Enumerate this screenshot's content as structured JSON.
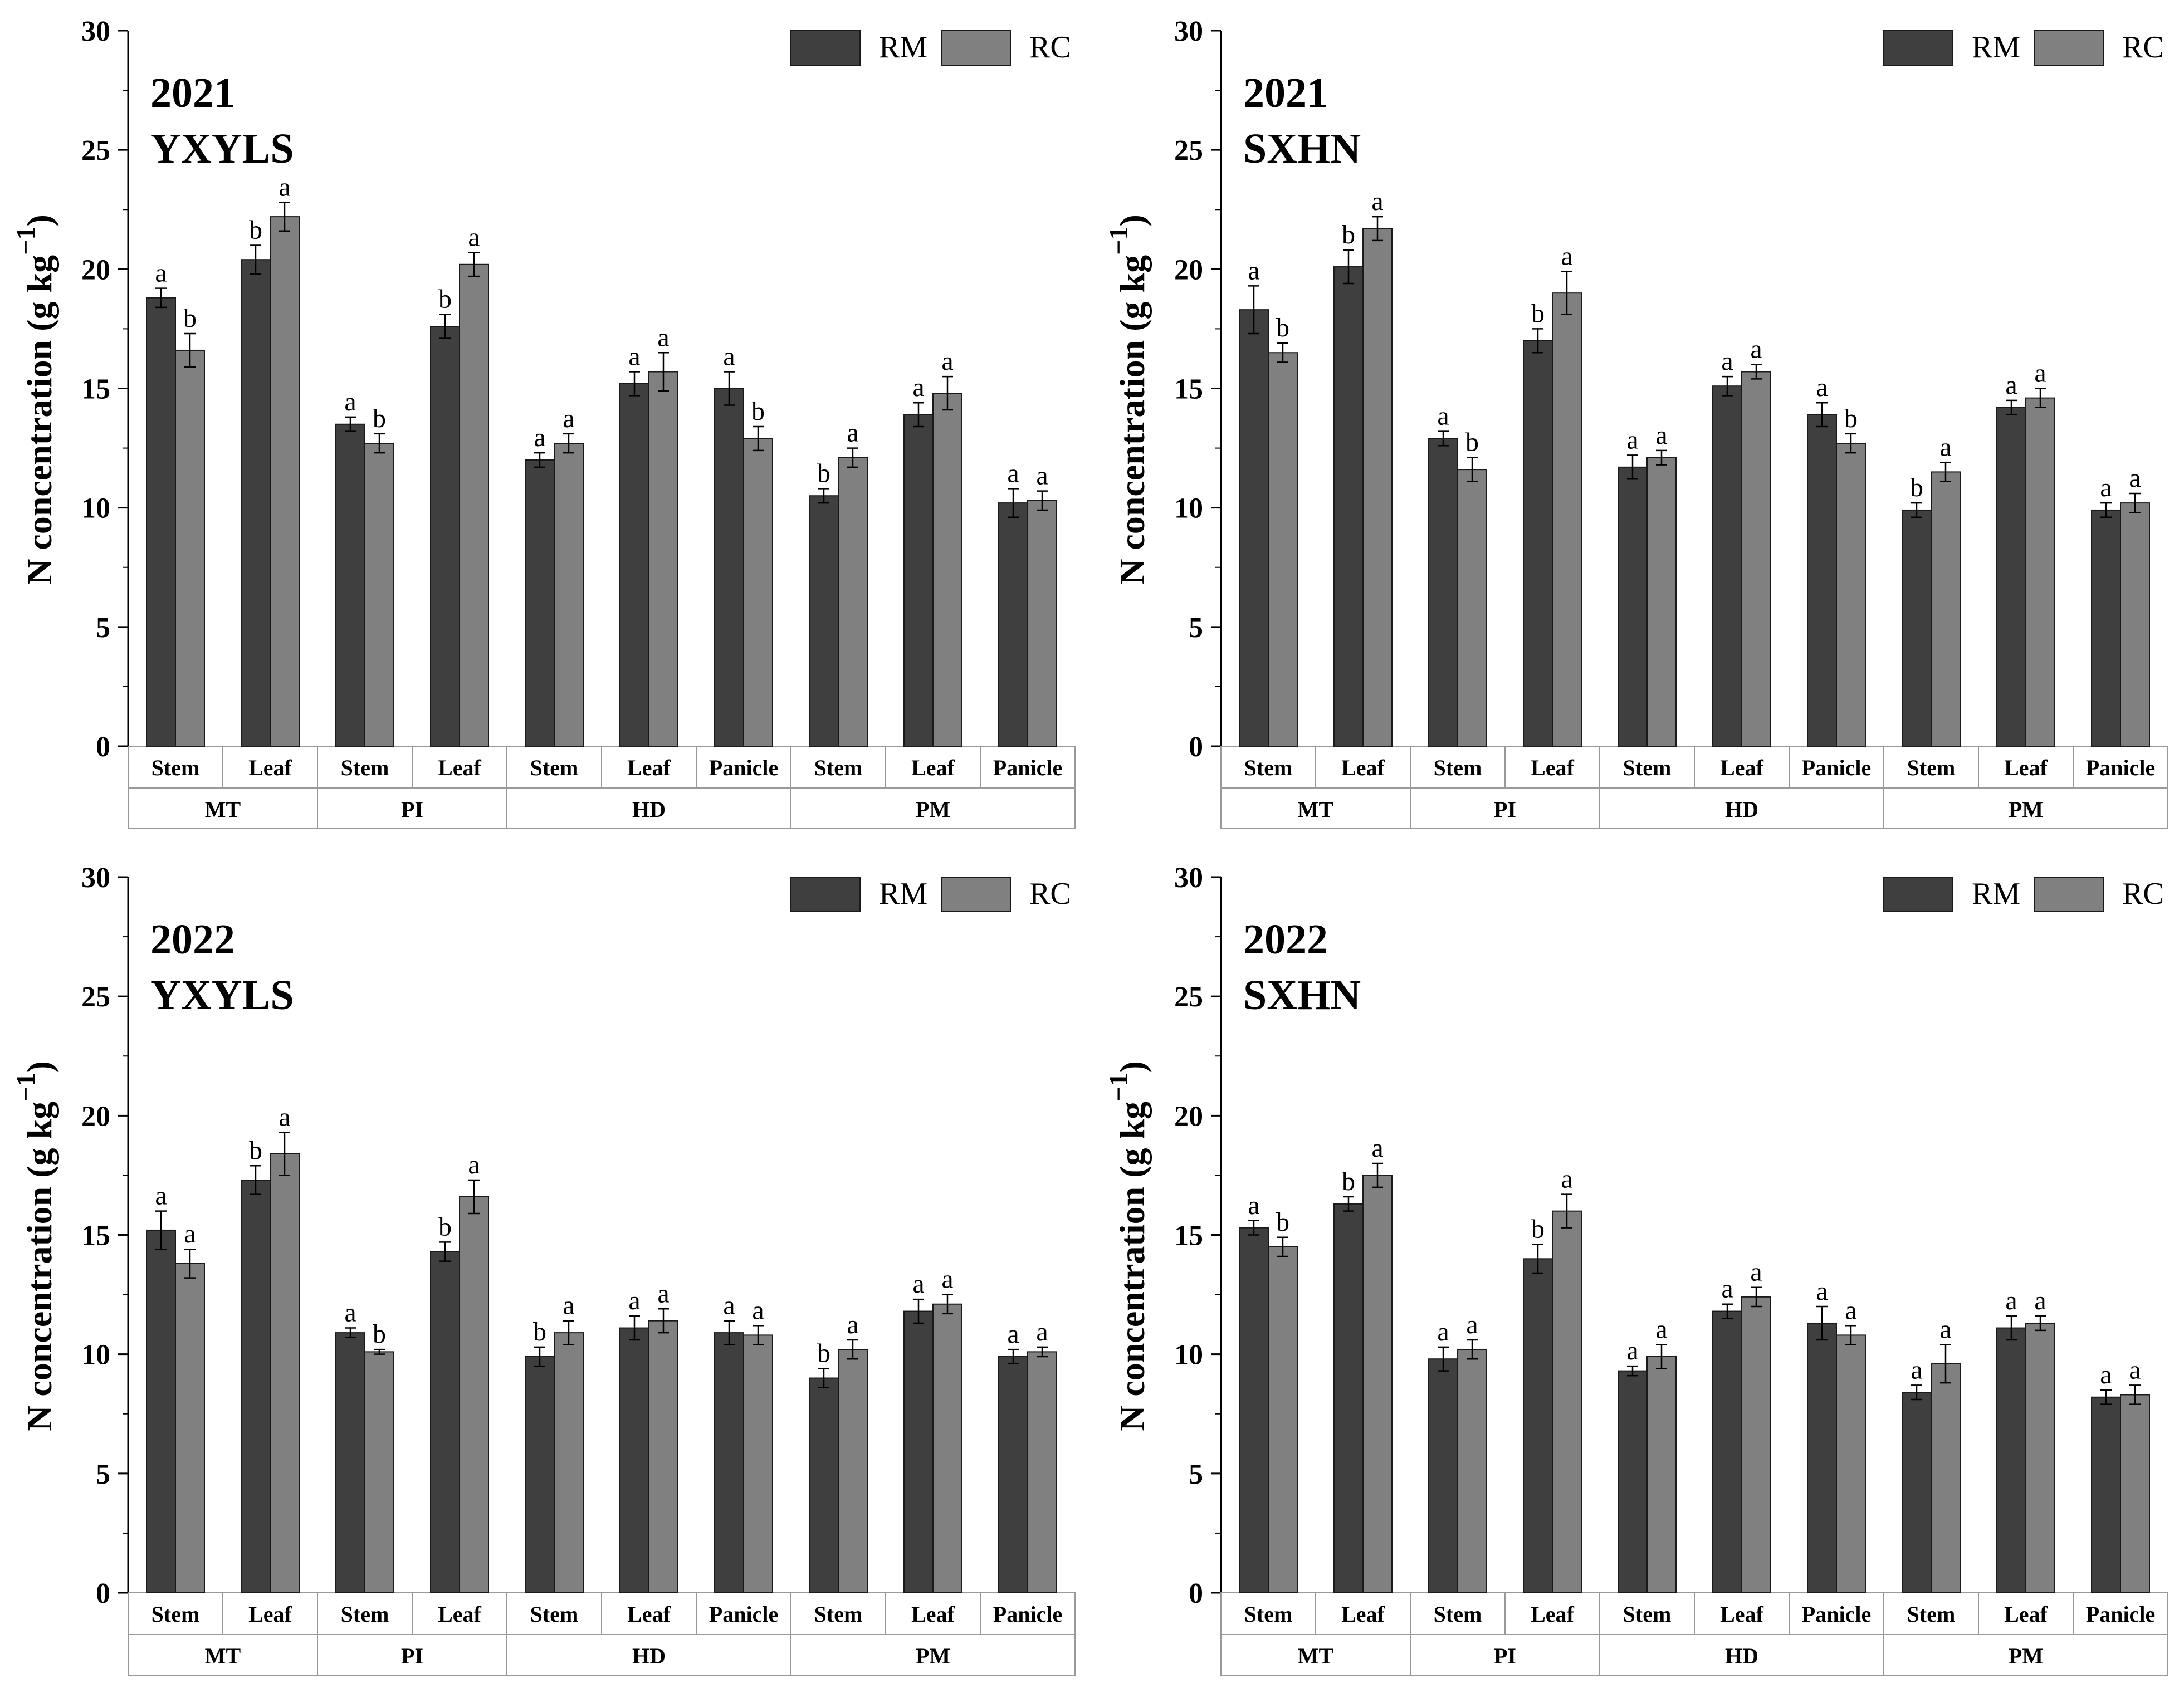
{
  "figure": {
    "description_free": true
  },
  "legend": {
    "items": [
      {
        "label": "RM",
        "color": "#3f3f3f"
      },
      {
        "label": "RC",
        "color": "#808080"
      }
    ]
  },
  "ylabel": "N concentration (g kg",
  "ylabel_sup": "−1",
  "ylabel_close": ")",
  "categories": [
    "Stem",
    "Leaf",
    "Stem",
    "Leaf",
    "Stem",
    "Leaf",
    "Panicle",
    "Stem",
    "Leaf",
    "Panicle"
  ],
  "groups": [
    {
      "label": "MT",
      "span": [
        0,
        1
      ]
    },
    {
      "label": "PI",
      "span": [
        2,
        3
      ]
    },
    {
      "label": "HD",
      "span": [
        4,
        6
      ]
    },
    {
      "label": "PM",
      "span": [
        7,
        9
      ]
    }
  ],
  "chart_data": [
    {
      "type": "bar",
      "title_line1": "2021",
      "title_line2": "YXYLS",
      "ylim": [
        0,
        30
      ],
      "yticks": [
        0,
        5,
        10,
        15,
        20,
        25,
        30
      ],
      "series": [
        {
          "name": "RM",
          "values": [
            18.8,
            20.4,
            13.5,
            17.6,
            12.0,
            15.2,
            15.0,
            10.5,
            13.9,
            10.2
          ],
          "errors": [
            0.4,
            0.6,
            0.3,
            0.5,
            0.3,
            0.5,
            0.7,
            0.3,
            0.5,
            0.6
          ],
          "sig": [
            "a",
            "b",
            "a",
            "b",
            "a",
            "a",
            "a",
            "b",
            "a",
            "a"
          ]
        },
        {
          "name": "RC",
          "values": [
            16.6,
            22.2,
            12.7,
            20.2,
            12.7,
            15.7,
            12.9,
            12.1,
            14.8,
            10.3
          ],
          "errors": [
            0.7,
            0.6,
            0.4,
            0.5,
            0.4,
            0.8,
            0.5,
            0.4,
            0.7,
            0.4
          ],
          "sig": [
            "b",
            "a",
            "b",
            "a",
            "a",
            "a",
            "b",
            "a",
            "a",
            "a"
          ]
        }
      ]
    },
    {
      "type": "bar",
      "title_line1": "2021",
      "title_line2": "SXHN",
      "ylim": [
        0,
        30
      ],
      "yticks": [
        0,
        5,
        10,
        15,
        20,
        25,
        30
      ],
      "series": [
        {
          "name": "RM",
          "values": [
            18.3,
            20.1,
            12.9,
            17.0,
            11.7,
            15.1,
            13.9,
            9.9,
            14.2,
            9.9
          ],
          "errors": [
            1.0,
            0.7,
            0.3,
            0.5,
            0.5,
            0.4,
            0.5,
            0.3,
            0.3,
            0.3
          ],
          "sig": [
            "a",
            "b",
            "a",
            "b",
            "a",
            "a",
            "a",
            "b",
            "a",
            "a"
          ]
        },
        {
          "name": "RC",
          "values": [
            16.5,
            21.7,
            11.6,
            19.0,
            12.1,
            15.7,
            12.7,
            11.5,
            14.6,
            10.2
          ],
          "errors": [
            0.4,
            0.5,
            0.5,
            0.9,
            0.3,
            0.3,
            0.4,
            0.4,
            0.4,
            0.4
          ],
          "sig": [
            "b",
            "a",
            "b",
            "a",
            "a",
            "a",
            "b",
            "a",
            "a",
            "a"
          ]
        }
      ]
    },
    {
      "type": "bar",
      "title_line1": "2022",
      "title_line2": "YXYLS",
      "ylim": [
        0,
        30
      ],
      "yticks": [
        0,
        5,
        10,
        15,
        20,
        25,
        30
      ],
      "series": [
        {
          "name": "RM",
          "values": [
            15.2,
            17.3,
            10.9,
            14.3,
            9.9,
            11.1,
            10.9,
            9.0,
            11.8,
            9.9
          ],
          "errors": [
            0.8,
            0.6,
            0.2,
            0.4,
            0.4,
            0.5,
            0.5,
            0.4,
            0.5,
            0.3
          ],
          "sig": [
            "a",
            "b",
            "a",
            "b",
            "b",
            "a",
            "a",
            "b",
            "a",
            "a"
          ]
        },
        {
          "name": "RC",
          "values": [
            13.8,
            18.4,
            10.1,
            16.6,
            10.9,
            11.4,
            10.8,
            10.2,
            12.1,
            10.1
          ],
          "errors": [
            0.6,
            0.9,
            0.1,
            0.7,
            0.5,
            0.5,
            0.4,
            0.4,
            0.4,
            0.2
          ],
          "sig": [
            "a",
            "a",
            "b",
            "a",
            "a",
            "a",
            "a",
            "a",
            "a",
            "a"
          ]
        }
      ]
    },
    {
      "type": "bar",
      "title_line1": "2022",
      "title_line2": "SXHN",
      "ylim": [
        0,
        30
      ],
      "yticks": [
        0,
        5,
        10,
        15,
        20,
        25,
        30
      ],
      "series": [
        {
          "name": "RM",
          "values": [
            15.3,
            16.3,
            9.8,
            14.0,
            9.3,
            11.8,
            11.3,
            8.4,
            11.1,
            8.2
          ],
          "errors": [
            0.3,
            0.3,
            0.5,
            0.6,
            0.2,
            0.3,
            0.7,
            0.3,
            0.5,
            0.3
          ],
          "sig": [
            "a",
            "b",
            "a",
            "b",
            "a",
            "a",
            "a",
            "a",
            "a",
            "a"
          ]
        },
        {
          "name": "RC",
          "values": [
            14.5,
            17.5,
            10.2,
            16.0,
            9.9,
            12.4,
            10.8,
            9.6,
            11.3,
            8.3
          ],
          "errors": [
            0.4,
            0.5,
            0.4,
            0.7,
            0.5,
            0.4,
            0.4,
            0.8,
            0.3,
            0.4
          ],
          "sig": [
            "b",
            "a",
            "a",
            "a",
            "a",
            "a",
            "a",
            "a",
            "a",
            "a"
          ]
        }
      ]
    }
  ]
}
